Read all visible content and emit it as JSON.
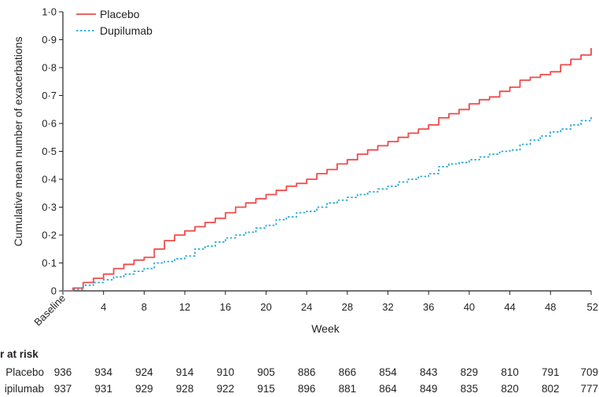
{
  "chart_data": {
    "type": "line",
    "title": "",
    "xlabel": "Week",
    "ylabel": "Cumulative mean number of exacerbations",
    "xlim": [
      0,
      52
    ],
    "ylim": [
      0,
      1.0
    ],
    "x_ticks": [
      {
        "value": 0,
        "label": "Baseline"
      },
      {
        "value": 4,
        "label": "4"
      },
      {
        "value": 8,
        "label": "8"
      },
      {
        "value": 12,
        "label": "12"
      },
      {
        "value": 16,
        "label": "16"
      },
      {
        "value": 20,
        "label": "20"
      },
      {
        "value": 24,
        "label": "24"
      },
      {
        "value": 28,
        "label": "28"
      },
      {
        "value": 32,
        "label": "32"
      },
      {
        "value": 36,
        "label": "36"
      },
      {
        "value": 40,
        "label": "40"
      },
      {
        "value": 44,
        "label": "44"
      },
      {
        "value": 48,
        "label": "48"
      },
      {
        "value": 52,
        "label": "52"
      }
    ],
    "y_ticks": [
      {
        "value": 0,
        "label": "0"
      },
      {
        "value": 0.1,
        "label": "0·1"
      },
      {
        "value": 0.2,
        "label": "0·2"
      },
      {
        "value": 0.3,
        "label": "0·3"
      },
      {
        "value": 0.4,
        "label": "0·4"
      },
      {
        "value": 0.5,
        "label": "0·5"
      },
      {
        "value": 0.6,
        "label": "0·6"
      },
      {
        "value": 0.7,
        "label": "0·7"
      },
      {
        "value": 0.8,
        "label": "0·8"
      },
      {
        "value": 0.9,
        "label": "0·9"
      },
      {
        "value": 1.0,
        "label": "1·0"
      }
    ],
    "grid": false,
    "legend_position": "top-left",
    "series": [
      {
        "name": "Placebo",
        "color": "#ef4b4b",
        "dash": "solid",
        "points": [
          [
            0,
            0
          ],
          [
            1,
            0.01
          ],
          [
            2,
            0.03
          ],
          [
            3,
            0.045
          ],
          [
            4,
            0.06
          ],
          [
            5,
            0.08
          ],
          [
            6,
            0.095
          ],
          [
            7,
            0.11
          ],
          [
            8,
            0.12
          ],
          [
            9,
            0.15
          ],
          [
            10,
            0.18
          ],
          [
            11,
            0.2
          ],
          [
            12,
            0.215
          ],
          [
            13,
            0.23
          ],
          [
            14,
            0.245
          ],
          [
            15,
            0.26
          ],
          [
            16,
            0.28
          ],
          [
            17,
            0.3
          ],
          [
            18,
            0.315
          ],
          [
            19,
            0.33
          ],
          [
            20,
            0.345
          ],
          [
            21,
            0.36
          ],
          [
            22,
            0.375
          ],
          [
            23,
            0.385
          ],
          [
            24,
            0.4
          ],
          [
            25,
            0.42
          ],
          [
            26,
            0.435
          ],
          [
            27,
            0.455
          ],
          [
            28,
            0.47
          ],
          [
            29,
            0.49
          ],
          [
            30,
            0.505
          ],
          [
            31,
            0.52
          ],
          [
            32,
            0.535
          ],
          [
            33,
            0.55
          ],
          [
            34,
            0.565
          ],
          [
            35,
            0.58
          ],
          [
            36,
            0.595
          ],
          [
            37,
            0.62
          ],
          [
            38,
            0.635
          ],
          [
            39,
            0.65
          ],
          [
            40,
            0.67
          ],
          [
            41,
            0.685
          ],
          [
            42,
            0.695
          ],
          [
            43,
            0.715
          ],
          [
            44,
            0.73
          ],
          [
            45,
            0.755
          ],
          [
            46,
            0.765
          ],
          [
            47,
            0.775
          ],
          [
            48,
            0.785
          ],
          [
            49,
            0.81
          ],
          [
            50,
            0.83
          ],
          [
            51,
            0.845
          ],
          [
            52,
            0.87
          ]
        ]
      },
      {
        "name": "Dupilumab",
        "color": "#29a9d6",
        "dash": "dotted",
        "points": [
          [
            0,
            0
          ],
          [
            1,
            0.005
          ],
          [
            2,
            0.02
          ],
          [
            3,
            0.03
          ],
          [
            4,
            0.04
          ],
          [
            5,
            0.05
          ],
          [
            6,
            0.06
          ],
          [
            7,
            0.07
          ],
          [
            8,
            0.08
          ],
          [
            9,
            0.1
          ],
          [
            10,
            0.105
          ],
          [
            11,
            0.115
          ],
          [
            12,
            0.125
          ],
          [
            13,
            0.15
          ],
          [
            14,
            0.16
          ],
          [
            15,
            0.175
          ],
          [
            16,
            0.19
          ],
          [
            17,
            0.2
          ],
          [
            18,
            0.21
          ],
          [
            19,
            0.225
          ],
          [
            20,
            0.235
          ],
          [
            21,
            0.255
          ],
          [
            22,
            0.265
          ],
          [
            23,
            0.28
          ],
          [
            24,
            0.285
          ],
          [
            25,
            0.3
          ],
          [
            26,
            0.315
          ],
          [
            27,
            0.325
          ],
          [
            28,
            0.335
          ],
          [
            29,
            0.345
          ],
          [
            30,
            0.355
          ],
          [
            31,
            0.365
          ],
          [
            32,
            0.375
          ],
          [
            33,
            0.39
          ],
          [
            34,
            0.4
          ],
          [
            35,
            0.41
          ],
          [
            36,
            0.42
          ],
          [
            37,
            0.445
          ],
          [
            38,
            0.455
          ],
          [
            39,
            0.46
          ],
          [
            40,
            0.47
          ],
          [
            41,
            0.48
          ],
          [
            42,
            0.49
          ],
          [
            43,
            0.5
          ],
          [
            44,
            0.505
          ],
          [
            45,
            0.525
          ],
          [
            46,
            0.54
          ],
          [
            47,
            0.555
          ],
          [
            48,
            0.57
          ],
          [
            49,
            0.58
          ],
          [
            50,
            0.595
          ],
          [
            51,
            0.61
          ],
          [
            52,
            0.625
          ]
        ]
      }
    ]
  },
  "at_risk": {
    "header": "r at risk",
    "rows": [
      {
        "label": "Placebo",
        "values": [
          "936",
          "934",
          "924",
          "914",
          "910",
          "905",
          "886",
          "866",
          "854",
          "843",
          "829",
          "810",
          "791",
          "709"
        ]
      },
      {
        "label": "ipilumab",
        "values": [
          "937",
          "931",
          "929",
          "928",
          "922",
          "915",
          "896",
          "881",
          "864",
          "849",
          "835",
          "820",
          "802",
          "777"
        ]
      }
    ]
  }
}
